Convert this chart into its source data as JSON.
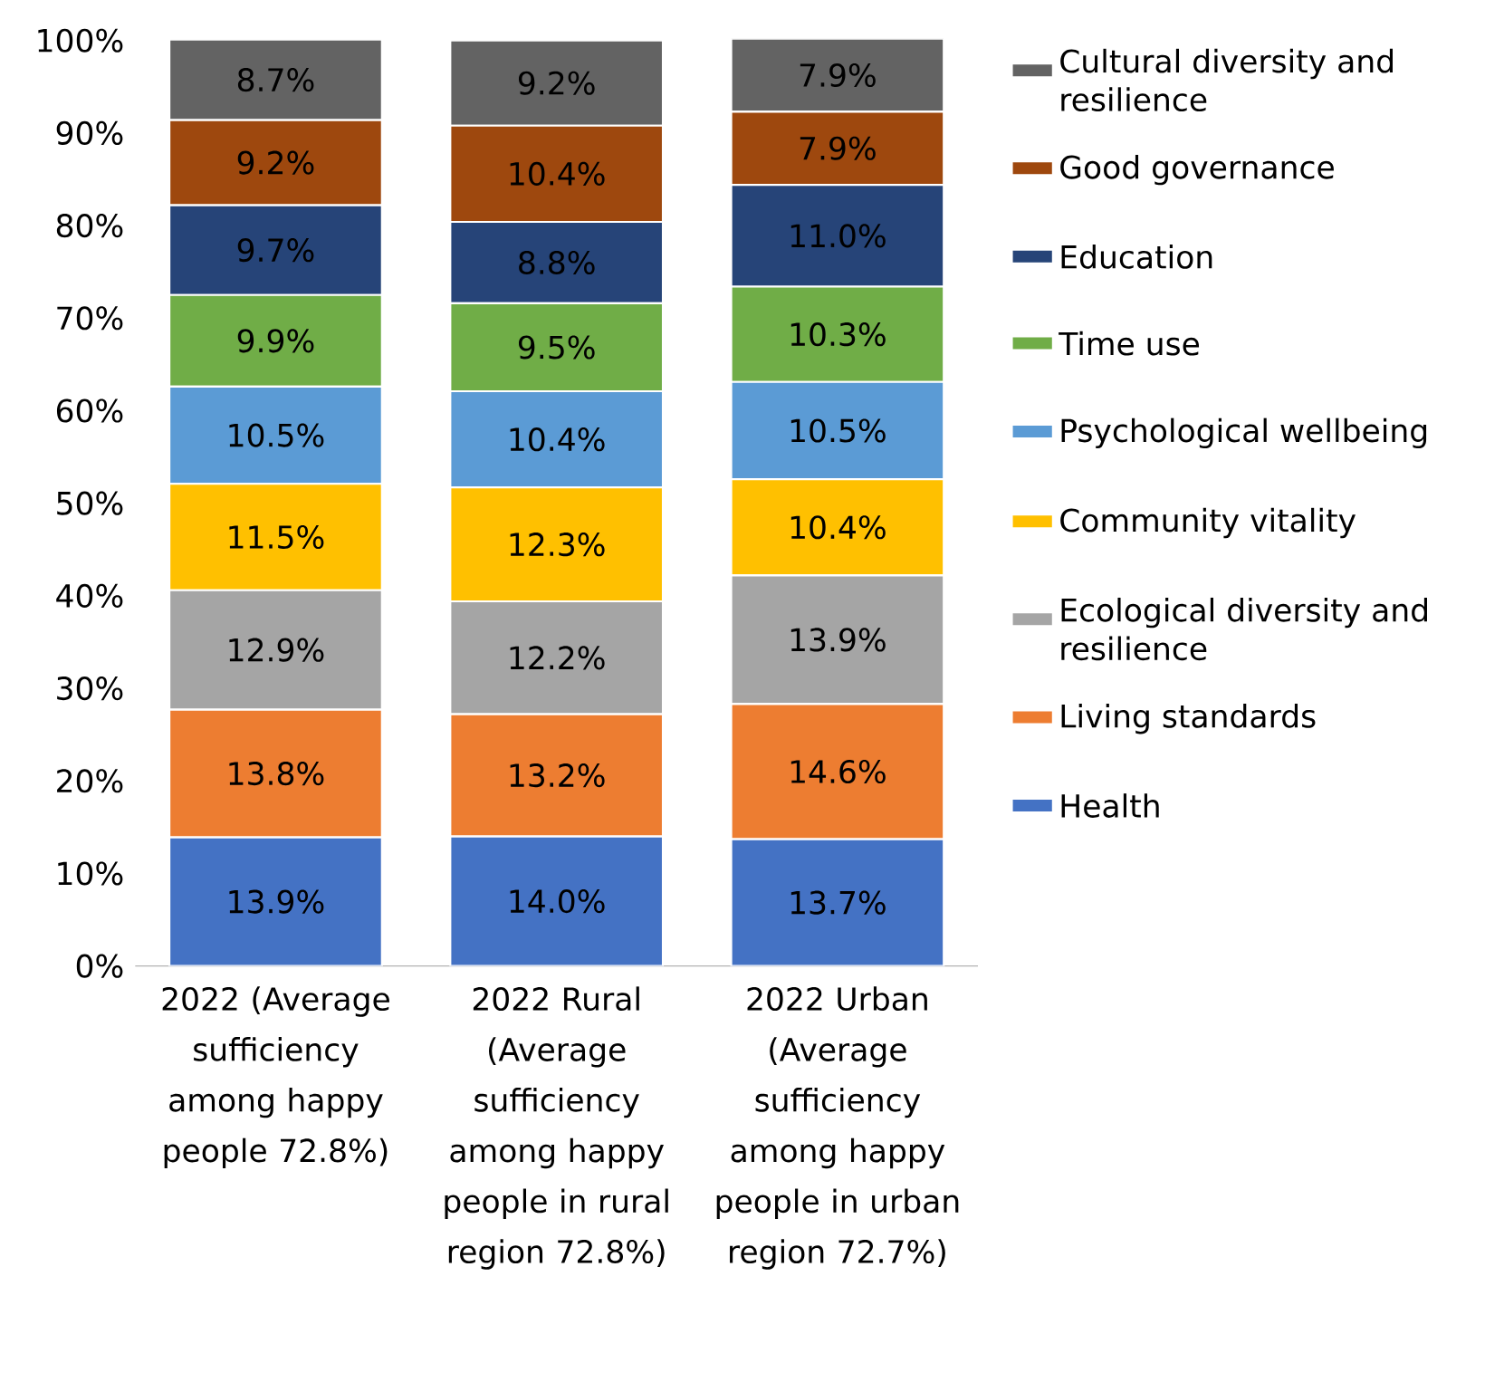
{
  "chart_data": {
    "type": "bar",
    "stacked": true,
    "legend": "right",
    "categories": [
      "2022 (Average sufficiency among happy people 72.8%)",
      "2022 Rural (Average sufficiency among happy people in rural region 72.8%)",
      "2022 Urban (Average sufficiency among happy people in urban region 72.7%)"
    ],
    "ylim": [
      0,
      100.2
    ],
    "yticks": [
      {
        "value": 0,
        "label": "0%"
      },
      {
        "value": 10,
        "label": "10%"
      },
      {
        "value": 20,
        "label": "20%"
      },
      {
        "value": 30,
        "label": "30%"
      },
      {
        "value": 40,
        "label": "40%"
      },
      {
        "value": 50,
        "label": "50%"
      },
      {
        "value": 60,
        "label": "60%"
      },
      {
        "value": 70,
        "label": "70%"
      },
      {
        "value": 80,
        "label": "80%"
      },
      {
        "value": 90,
        "label": "90%"
      },
      {
        "value": 100,
        "label": "100%"
      }
    ],
    "series": [
      {
        "name": "Health",
        "color": "#4472c4",
        "values": [
          13.9,
          14.0,
          13.7
        ],
        "value_labels": [
          "13.9%",
          "14.0%",
          "13.7%"
        ]
      },
      {
        "name": "Living standards",
        "color": "#ed7d31",
        "values": [
          13.8,
          13.2,
          14.6
        ],
        "value_labels": [
          "13.8%",
          "13.2%",
          "14.6%"
        ]
      },
      {
        "name": "Ecological diversity and resilience",
        "color": "#a5a5a5",
        "values": [
          12.9,
          12.2,
          13.9
        ],
        "value_labels": [
          "12.9%",
          "12.2%",
          "13.9%"
        ]
      },
      {
        "name": "Community vitality",
        "color": "#ffc000",
        "values": [
          11.5,
          12.3,
          10.4
        ],
        "value_labels": [
          "11.5%",
          "12.3%",
          "10.4%"
        ]
      },
      {
        "name": "Psychological wellbeing",
        "color": "#5b9bd5",
        "values": [
          10.5,
          10.4,
          10.5
        ],
        "value_labels": [
          "10.5%",
          "10.4%",
          "10.5%"
        ]
      },
      {
        "name": "Time use",
        "color": "#70ad47",
        "values": [
          9.9,
          9.5,
          10.3
        ],
        "value_labels": [
          "9.9%",
          "9.5%",
          "10.3%"
        ]
      },
      {
        "name": "Education",
        "color": "#264478",
        "values": [
          9.7,
          8.8,
          11.0
        ],
        "value_labels": [
          "9.7%",
          "8.8%",
          "11.0%"
        ]
      },
      {
        "name": "Good governance",
        "color": "#9e480e",
        "values": [
          9.2,
          10.4,
          7.9
        ],
        "value_labels": [
          "9.2%",
          "10.4%",
          "7.9%"
        ]
      },
      {
        "name": "Cultural diversity and resilience",
        "color": "#636363",
        "values": [
          8.7,
          9.2,
          7.9
        ],
        "value_labels": [
          "8.7%",
          "9.2%",
          "7.9%"
        ]
      }
    ]
  }
}
